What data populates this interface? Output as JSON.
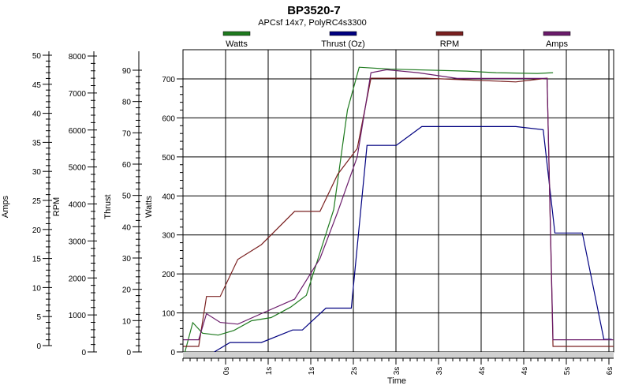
{
  "chart_data": {
    "type": "line",
    "title": "BP3520-7",
    "subtitle": "APCsf 14x7, PolyRC4s3300",
    "xlabel": "Time",
    "x_tick_labels": [
      "0s",
      "1s",
      "1s",
      "2s",
      "3s",
      "3s",
      "4s",
      "4s",
      "5s",
      "6s"
    ],
    "grid": true,
    "legend_position": "top",
    "axes": [
      {
        "label": "Amps",
        "ticks": [
          "0",
          "5",
          "10",
          "15",
          "20",
          "25",
          "30",
          "35",
          "40",
          "45",
          "50"
        ],
        "range": [
          0,
          50
        ]
      },
      {
        "label": "RPM",
        "ticks": [
          "0",
          "1000",
          "2000",
          "3000",
          "4000",
          "5000",
          "6000",
          "7000",
          "8000"
        ],
        "range": [
          0,
          8000
        ]
      },
      {
        "label": "Thrust",
        "ticks": [
          "0",
          "10",
          "20",
          "30",
          "40",
          "50",
          "60",
          "70",
          "80",
          "90"
        ],
        "range": [
          0,
          90
        ]
      },
      {
        "label": "Watts",
        "ticks": [
          "0",
          "100",
          "200",
          "300",
          "400",
          "500",
          "600",
          "700"
        ],
        "range": [
          0,
          700
        ]
      }
    ],
    "series": [
      {
        "name": "Watts",
        "color": "#1e7a1e",
        "axis": "Watts",
        "x": [
          0.05,
          0.25,
          0.5,
          0.9,
          1.3,
          1.75,
          2.25,
          2.75,
          3.15,
          3.5,
          3.85,
          4.2,
          4.5,
          5.3,
          7.25,
          7.6,
          8.0,
          9.05,
          9.45
        ],
        "y": [
          0,
          75,
          48,
          43,
          55,
          80,
          88,
          115,
          145,
          255,
          365,
          620,
          730,
          725,
          720,
          718,
          716,
          714,
          716
        ]
      },
      {
        "name": "Thrust (Oz)",
        "color": "#000080",
        "axis": "Thrust",
        "x": [
          0.8,
          1.2,
          2.0,
          2.8,
          3.05,
          3.65,
          4.3,
          4.7,
          4.95,
          5.45,
          6.1,
          6.55,
          8.5,
          9.2,
          9.5,
          9.85,
          10.2,
          10.75,
          10.95
        ],
        "y": [
          0,
          3,
          3,
          7,
          7,
          14,
          14,
          66,
          66,
          66,
          72,
          72,
          72,
          71,
          38,
          38,
          38,
          4,
          4
        ]
      },
      {
        "name": "RPM",
        "color": "#7a2020",
        "axis": "RPM",
        "x": [
          0,
          0.4,
          0.6,
          0.95,
          1.4,
          2.0,
          2.85,
          3.5,
          3.95,
          4.45,
          4.8,
          5.5,
          6.2,
          8.5,
          9.3,
          9.45,
          9.8,
          11.0
        ],
        "y": [
          150,
          150,
          1500,
          1500,
          2500,
          2900,
          3800,
          3800,
          4800,
          5500,
          7400,
          7400,
          7400,
          7300,
          7400,
          150,
          150,
          150
        ]
      },
      {
        "name": "Amps",
        "color": "#6a1b6a",
        "axis": "Amps",
        "x": [
          0,
          0.4,
          0.6,
          0.95,
          1.4,
          2.0,
          2.85,
          3.5,
          3.95,
          4.45,
          4.8,
          5.2,
          6.0,
          7.0,
          8.5,
          9.3,
          9.45,
          9.8,
          11.0
        ],
        "y": [
          1,
          1,
          5.5,
          4,
          3.7,
          5.5,
          8,
          15,
          23,
          32.5,
          47,
          47.5,
          47,
          46,
          46,
          46,
          1,
          1,
          1
        ]
      }
    ]
  }
}
